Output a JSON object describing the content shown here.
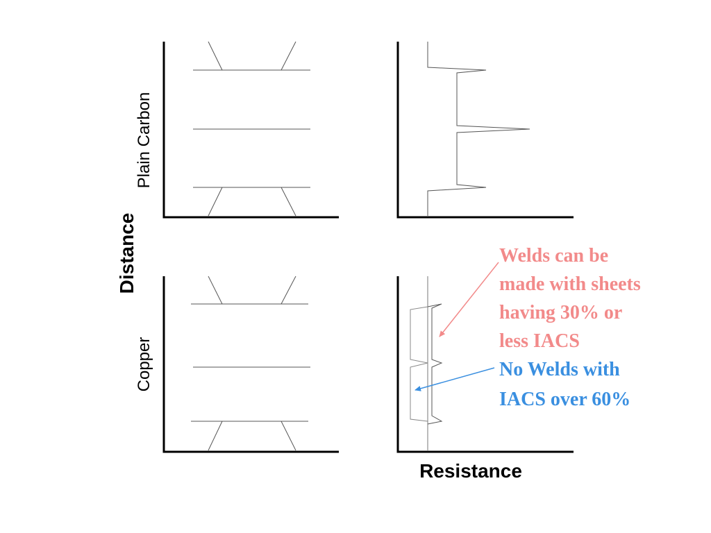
{
  "labels": {
    "distance": "Distance",
    "resistance": "Resistance",
    "plain_carbon": "Plain Carbon",
    "copper": "Copper"
  },
  "annotations": {
    "welds_ok": [
      "Welds can be",
      "made with sheets",
      "having 30% or",
      "less IACS"
    ],
    "no_welds": [
      "No Welds with",
      "IACS over 60%"
    ]
  },
  "colors": {
    "axis": "#000000",
    "line": "#555555",
    "welds_ok": "#f28a8a",
    "no_welds": "#3a8fe0"
  }
}
